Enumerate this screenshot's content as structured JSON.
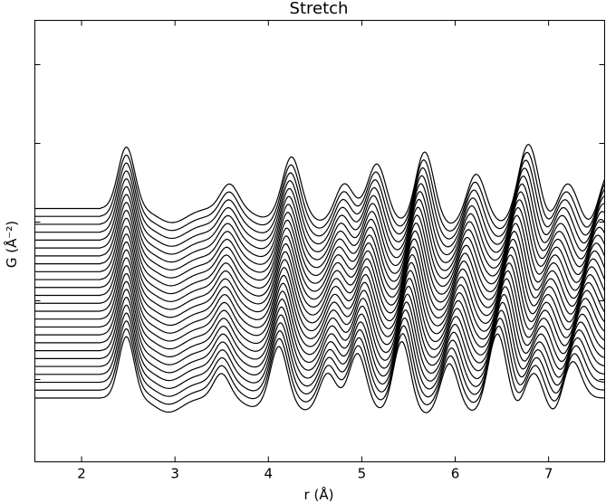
{
  "chart_data": {
    "type": "line",
    "title": "Stretch",
    "xlabel": "r (Å)",
    "ylabel": "G (Å⁻²)",
    "xlim": [
      1.5,
      7.6
    ],
    "x_ticks": [
      2,
      3,
      4,
      5,
      6,
      7
    ],
    "x_tick_labels": [
      "2",
      "3",
      "4",
      "5",
      "6",
      "7"
    ],
    "y_ticks_labeled": false,
    "grid": false,
    "legend": "none",
    "line_color": "#000000",
    "series_count": 25,
    "stretch_range": [
      0.96,
      1.04
    ],
    "curve_offset_step": 0.45,
    "peaks_at_bottom_curve": [
      {
        "r": 2.48,
        "height": 3.5,
        "width": 0.085
      },
      {
        "r": 3.54,
        "height": 1.4,
        "width": 0.09
      },
      {
        "r": 4.18,
        "height": 3.0,
        "width": 0.09
      },
      {
        "r": 4.72,
        "height": 1.5,
        "width": 0.085
      },
      {
        "r": 5.06,
        "height": 2.6,
        "width": 0.09
      },
      {
        "r": 5.55,
        "height": 3.4,
        "width": 0.09
      },
      {
        "r": 6.08,
        "height": 2.1,
        "width": 0.09
      },
      {
        "r": 6.62,
        "height": 3.8,
        "width": 0.1
      },
      {
        "r": 7.02,
        "height": 1.6,
        "width": 0.1
      },
      {
        "r": 7.45,
        "height": 2.2,
        "width": 0.1
      }
    ],
    "troughs_at_bottom_curve": [
      {
        "r": 2.95,
        "depth": -0.8,
        "width": 0.15
      },
      {
        "r": 3.9,
        "depth": -0.5,
        "width": 0.12
      },
      {
        "r": 4.48,
        "depth": -0.7,
        "width": 0.12
      },
      {
        "r": 5.32,
        "depth": -0.7,
        "width": 0.12
      },
      {
        "r": 5.82,
        "depth": -0.9,
        "width": 0.12
      },
      {
        "r": 6.35,
        "depth": -0.8,
        "width": 0.12
      },
      {
        "r": 6.83,
        "depth": -0.8,
        "width": 0.1
      },
      {
        "r": 7.25,
        "depth": -1.0,
        "width": 0.1
      }
    ]
  }
}
